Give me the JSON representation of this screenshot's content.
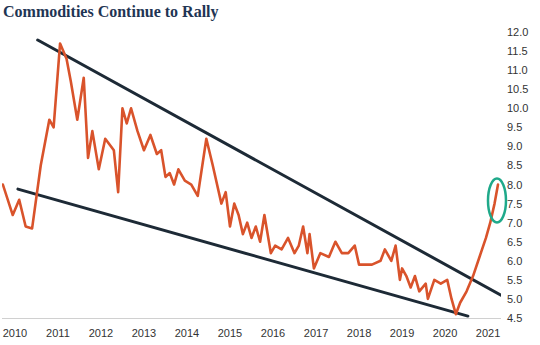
{
  "chart_data": {
    "type": "line",
    "title": "Commodities Continue to Rally",
    "x": [
      2009.72,
      2009.95,
      2010.1,
      2010.25,
      2010.4,
      2010.6,
      2010.8,
      2010.9,
      2011.05,
      2011.2,
      2011.3,
      2011.45,
      2011.6,
      2011.7,
      2011.8,
      2011.95,
      2012.1,
      2012.3,
      2012.4,
      2012.5,
      2012.6,
      2012.7,
      2012.85,
      2013.0,
      2013.15,
      2013.3,
      2013.4,
      2013.5,
      2013.6,
      2013.7,
      2013.8,
      2013.95,
      2014.1,
      2014.25,
      2014.45,
      2014.6,
      2014.8,
      2014.9,
      2015.0,
      2015.1,
      2015.2,
      2015.3,
      2015.4,
      2015.5,
      2015.6,
      2015.7,
      2015.8,
      2015.95,
      2016.05,
      2016.2,
      2016.35,
      2016.5,
      2016.6,
      2016.7,
      2016.8,
      2016.85,
      2016.95,
      2017.1,
      2017.3,
      2017.45,
      2017.6,
      2017.75,
      2017.9,
      2018.0,
      2018.3,
      2018.5,
      2018.6,
      2018.75,
      2018.85,
      2018.95,
      2019.0,
      2019.1,
      2019.2,
      2019.3,
      2019.4,
      2019.55,
      2019.6,
      2019.75,
      2019.9,
      2020.05,
      2020.15,
      2020.25,
      2020.35,
      2020.5,
      2020.65,
      2020.8,
      2020.95,
      2021.05,
      2021.15,
      2021.23
    ],
    "series": [
      {
        "color": "#d9532b",
        "values": [
          8.0,
          7.2,
          7.6,
          6.9,
          6.85,
          8.5,
          9.7,
          9.5,
          11.7,
          11.3,
          10.7,
          9.7,
          10.8,
          8.7,
          9.4,
          8.4,
          9.2,
          8.9,
          7.8,
          10.0,
          9.6,
          10.0,
          9.4,
          8.9,
          9.3,
          8.8,
          8.9,
          8.2,
          8.3,
          8.0,
          8.4,
          8.1,
          8.0,
          7.7,
          9.2,
          8.5,
          7.5,
          7.8,
          6.9,
          7.5,
          7.2,
          6.7,
          7.0,
          6.6,
          6.9,
          6.5,
          7.2,
          6.2,
          6.4,
          6.3,
          6.6,
          6.2,
          6.4,
          6.9,
          6.2,
          6.7,
          5.8,
          6.2,
          6.1,
          6.5,
          6.2,
          6.2,
          6.4,
          5.9,
          5.9,
          6.0,
          6.3,
          6.0,
          6.4,
          5.5,
          5.8,
          5.6,
          5.3,
          5.6,
          5.2,
          5.4,
          5.0,
          5.5,
          5.4,
          5.5,
          5.0,
          4.6,
          4.9,
          5.2,
          5.6,
          6.1,
          6.6,
          7.0,
          7.5,
          8.0
        ]
      }
    ],
    "trend_lines": [
      {
        "x": [
          2010.53,
          2021.3
        ],
        "values": [
          11.79,
          5.1
        ],
        "color": "#1d2a36"
      },
      {
        "x": [
          2010.07,
          2020.53
        ],
        "values": [
          7.88,
          4.55
        ],
        "color": "#1d2a36"
      }
    ],
    "xlim": [
      2009.7,
      2021.3
    ],
    "xticks": [
      2010,
      2011,
      2012,
      2013,
      2014,
      2015,
      2016,
      2017,
      2018,
      2019,
      2020,
      2021
    ],
    "ylim": [
      4.5,
      12.0
    ],
    "yticks": [
      {
        "value": 12.0,
        "label": "12.0"
      },
      11.5,
      {
        "value": 11.0,
        "label": "11.0"
      },
      10.5,
      {
        "value": 10.0,
        "label": "10.0"
      },
      9.5,
      {
        "value": 9.0,
        "label": "9.0"
      },
      8.5,
      {
        "value": 8.0,
        "label": "8.0"
      },
      7.5,
      {
        "value": 7.0,
        "label": "7.0"
      },
      6.5,
      {
        "value": 6.0,
        "label": "6.0"
      },
      5.5,
      {
        "value": 5.0,
        "label": "5.0"
      },
      4.5
    ],
    "grid": false
  }
}
